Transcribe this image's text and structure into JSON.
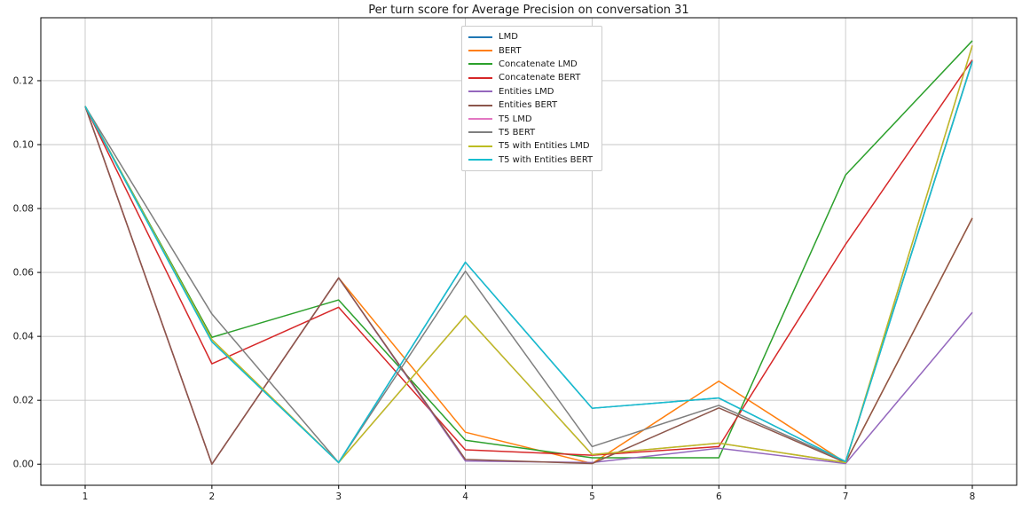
{
  "chart_data": {
    "type": "line",
    "title": "Per turn score for Average Precision on conversation 31",
    "xlabel": "",
    "ylabel": "",
    "x": [
      1,
      2,
      3,
      4,
      5,
      6,
      7,
      8
    ],
    "x_tick_labels": [
      "1",
      "2",
      "3",
      "4",
      "5",
      "6",
      "7",
      "8"
    ],
    "y_tick_values": [
      0.0,
      0.02,
      0.04,
      0.06,
      0.08,
      0.1,
      0.12
    ],
    "y_tick_labels": [
      "0.00",
      "0.02",
      "0.04",
      "0.06",
      "0.08",
      "0.10",
      "0.12"
    ],
    "xlim": [
      0.65,
      8.35
    ],
    "ylim": [
      -0.0066,
      0.1397
    ],
    "grid": true,
    "legend_position": "upper center",
    "series": [
      {
        "name": "LMD",
        "color": "#1f77b4",
        "values": [
          0.112,
          0.0383,
          0.0005,
          0.0632,
          0.0175,
          0.0207,
          0.0008,
          0.126
        ]
      },
      {
        "name": "BERT",
        "color": "#ff7f0e",
        "values": [
          0.112,
          0.0,
          0.0583,
          0.01,
          0.0002,
          0.026,
          0.0005,
          0.077
        ]
      },
      {
        "name": "Concatenate LMD",
        "color": "#2ca02c",
        "values": [
          0.112,
          0.0397,
          0.0514,
          0.0075,
          0.002,
          0.002,
          0.0905,
          0.1325
        ]
      },
      {
        "name": "Concatenate BERT",
        "color": "#d62728",
        "values": [
          0.112,
          0.0314,
          0.0491,
          0.0045,
          0.0028,
          0.0055,
          0.0688,
          0.1265
        ]
      },
      {
        "name": "Entities LMD",
        "color": "#9467bd",
        "values": [
          0.112,
          0.0,
          0.0583,
          0.001,
          0.0005,
          0.005,
          0.0002,
          0.0475
        ]
      },
      {
        "name": "Entities BERT",
        "color": "#8c564b",
        "values": [
          0.112,
          0.0,
          0.0583,
          0.0015,
          0.0002,
          0.0176,
          0.0005,
          0.077
        ]
      },
      {
        "name": "T5 LMD",
        "color": "#e377c2",
        "values": [
          0.112,
          0.039,
          0.0005,
          0.0465,
          0.003,
          0.0066,
          0.0005,
          0.131
        ]
      },
      {
        "name": "T5 BERT",
        "color": "#7f7f7f",
        "values": [
          0.112,
          0.047,
          0.0005,
          0.0604,
          0.0055,
          0.0184,
          0.0008,
          0.1262
        ]
      },
      {
        "name": "T5 with Entities LMD",
        "color": "#bcbd22",
        "values": [
          0.112,
          0.039,
          0.0005,
          0.0465,
          0.003,
          0.0066,
          0.0005,
          0.131
        ]
      },
      {
        "name": "T5 with Entities BERT",
        "color": "#17becf",
        "values": [
          0.112,
          0.0383,
          0.0005,
          0.0632,
          0.0175,
          0.0207,
          0.0008,
          0.126
        ]
      }
    ]
  }
}
